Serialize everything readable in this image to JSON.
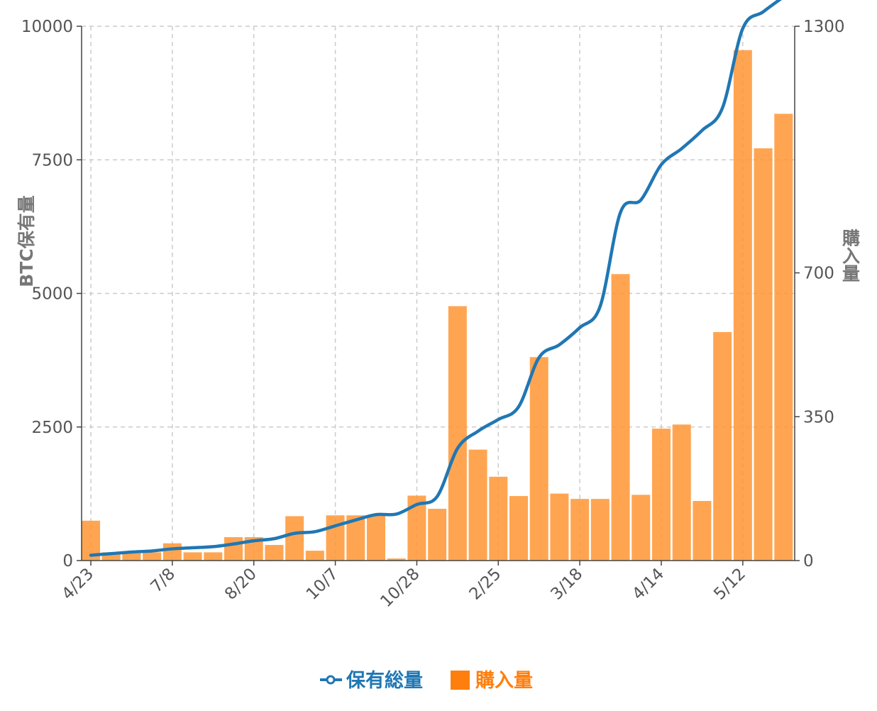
{
  "chart_data": {
    "type": "bar+line",
    "x": [
      "4/23",
      "",
      "",
      "",
      "7/8",
      "",
      "",
      "",
      "8/20",
      "",
      "",
      "",
      "10/7",
      "",
      "",
      "",
      "10/28",
      "",
      "",
      "",
      "2/25",
      "",
      "",
      "",
      "3/18",
      "",
      "",
      "",
      "4/14",
      "",
      "",
      "",
      "5/12",
      "",
      ""
    ],
    "x_tick_labels": [
      "4/23",
      "7/8",
      "8/20",
      "10/7",
      "10/28",
      "2/25",
      "3/18",
      "4/14",
      "5/12"
    ],
    "y_left": {
      "label": "BTC保有量",
      "ylim": [
        0,
        10000
      ],
      "ticks": [
        "0",
        "2500",
        "5000",
        "7500",
        "10000"
      ]
    },
    "y_right": {
      "label": "購入量",
      "ylim": [
        0,
        1300
      ],
      "ticks": [
        "0",
        "350",
        "700",
        "1300"
      ]
    },
    "series": [
      {
        "name": "購入量",
        "kind": "bar",
        "axis": "right",
        "color": "#FF9533",
        "values": [
          97,
          20,
          20,
          20,
          42,
          20,
          20,
          57,
          57,
          38,
          108,
          24,
          110,
          110,
          110,
          5,
          158,
          126,
          619,
          270,
          204,
          157,
          495,
          163,
          150,
          150,
          697,
          160,
          321,
          331,
          145,
          556,
          1242,
          1003,
          1087
        ]
      },
      {
        "name": "保有総量",
        "kind": "line",
        "axis": "left",
        "color": "#2077B4",
        "values": [
          100,
          130,
          160,
          180,
          220,
          240,
          260,
          310,
          370,
          410,
          510,
          540,
          650,
          760,
          860,
          870,
          1050,
          1200,
          2100,
          2420,
          2640,
          2880,
          3800,
          4040,
          4360,
          4760,
          6520,
          6750,
          7410,
          7710,
          8050,
          8470,
          9960,
          10270,
          10550
        ]
      }
    ],
    "legend": {
      "position": "bottom-center",
      "items": [
        "保有総量",
        "購入量"
      ]
    },
    "grid": true
  }
}
